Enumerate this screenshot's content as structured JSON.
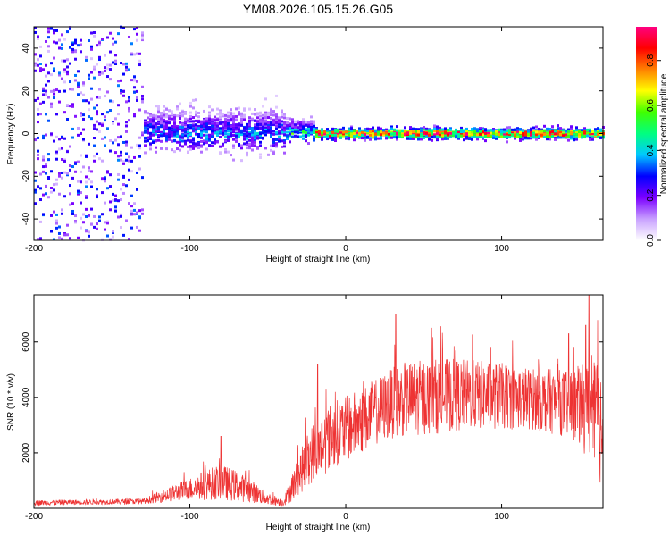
{
  "title": "YM08.2026.105.15.26.G05",
  "chart_data": [
    {
      "type": "heatmap",
      "title": "YM08.2026.105.15.26.G05",
      "xlabel": "Height of straight line (km)",
      "ylabel": "Frequency (Hz)",
      "xlim": [
        -200,
        165
      ],
      "ylim": [
        -50,
        50
      ],
      "x_ticks": [
        -200,
        -100,
        0,
        100
      ],
      "y_ticks": [
        -40,
        -20,
        0,
        20,
        40
      ],
      "x_tick_labels": [
        "-200",
        "-100",
        "0",
        "100"
      ],
      "y_tick_labels": [
        "-40",
        "-20",
        "0",
        "20",
        "40"
      ],
      "colorbar": {
        "label": "Normalized spectral amplitude",
        "range": [
          0,
          0.95
        ],
        "ticks": [
          0.0,
          0.2,
          0.4,
          0.6,
          0.8
        ],
        "tick_labels": [
          "0.0",
          "0.2",
          "0.4",
          "0.6",
          "0.8"
        ],
        "colormap": [
          "#ffffff",
          "#c8a0ff",
          "#7b00ff",
          "#0000ff",
          "#00c8ff",
          "#00ff80",
          "#40ff00",
          "#ffff00",
          "#ff8000",
          "#ff0000",
          "#ff0080"
        ]
      },
      "regions": [
        {
          "x_range": [
            -200,
            -130
          ],
          "description": "diffuse scattered noise",
          "freq_spread": 50,
          "amplitude": 0.25
        },
        {
          "x_range": [
            -130,
            -40
          ],
          "description": "broad band",
          "freq_spread": 12,
          "amplitude": 0.35
        },
        {
          "x_range": [
            -40,
            -20
          ],
          "description": "narrowing band",
          "freq_spread": 6,
          "amplitude": 0.5
        },
        {
          "x_range": [
            -20,
            165
          ],
          "description": "narrow band near 0 Hz",
          "freq_spread": 3,
          "amplitude": 0.9
        }
      ]
    },
    {
      "type": "line",
      "xlabel": "Height of straight line (km)",
      "ylabel": "SNR (10 * v/v)",
      "xlim": [
        -200,
        165
      ],
      "ylim": [
        0,
        7700
      ],
      "x_ticks": [
        -200,
        -100,
        0,
        100
      ],
      "y_ticks": [
        2000,
        4000,
        6000
      ],
      "x_tick_labels": [
        "-200",
        "-100",
        "0",
        "100"
      ],
      "y_tick_labels": [
        "2000",
        "4000",
        "6000"
      ],
      "color": "#ee3333",
      "envelope": {
        "x": [
          -200,
          -130,
          -120,
          -100,
          -90,
          -80,
          -70,
          -60,
          -50,
          -40,
          -35,
          -30,
          -25,
          -20,
          -15,
          -10,
          -5,
          0,
          10,
          20,
          30,
          40,
          60,
          80,
          100,
          120,
          140,
          150,
          160,
          165
        ],
        "mean": [
          200,
          250,
          400,
          700,
          850,
          950,
          800,
          600,
          350,
          200,
          700,
          1200,
          1700,
          2100,
          2300,
          2600,
          2750,
          2850,
          3150,
          3500,
          3800,
          3950,
          4050,
          4100,
          4050,
          3950,
          3800,
          3700,
          3300,
          3000
        ],
        "spread": [
          120,
          120,
          250,
          500,
          700,
          800,
          700,
          500,
          300,
          150,
          600,
          900,
          1200,
          1400,
          1500,
          1500,
          1500,
          1500,
          1500,
          1500,
          1600,
          1700,
          1700,
          1600,
          1500,
          1400,
          1500,
          1800,
          2500,
          3000
        ]
      },
      "peaks": [
        {
          "x": 156,
          "y": 7700
        },
        {
          "x": 154,
          "y": 6600
        },
        {
          "x": 32,
          "y": 7000
        },
        {
          "x": 55,
          "y": 6500
        },
        {
          "x": 143,
          "y": 6300
        },
        {
          "x": -80,
          "y": 2600
        },
        {
          "x": -18,
          "y": 5200
        }
      ]
    }
  ]
}
